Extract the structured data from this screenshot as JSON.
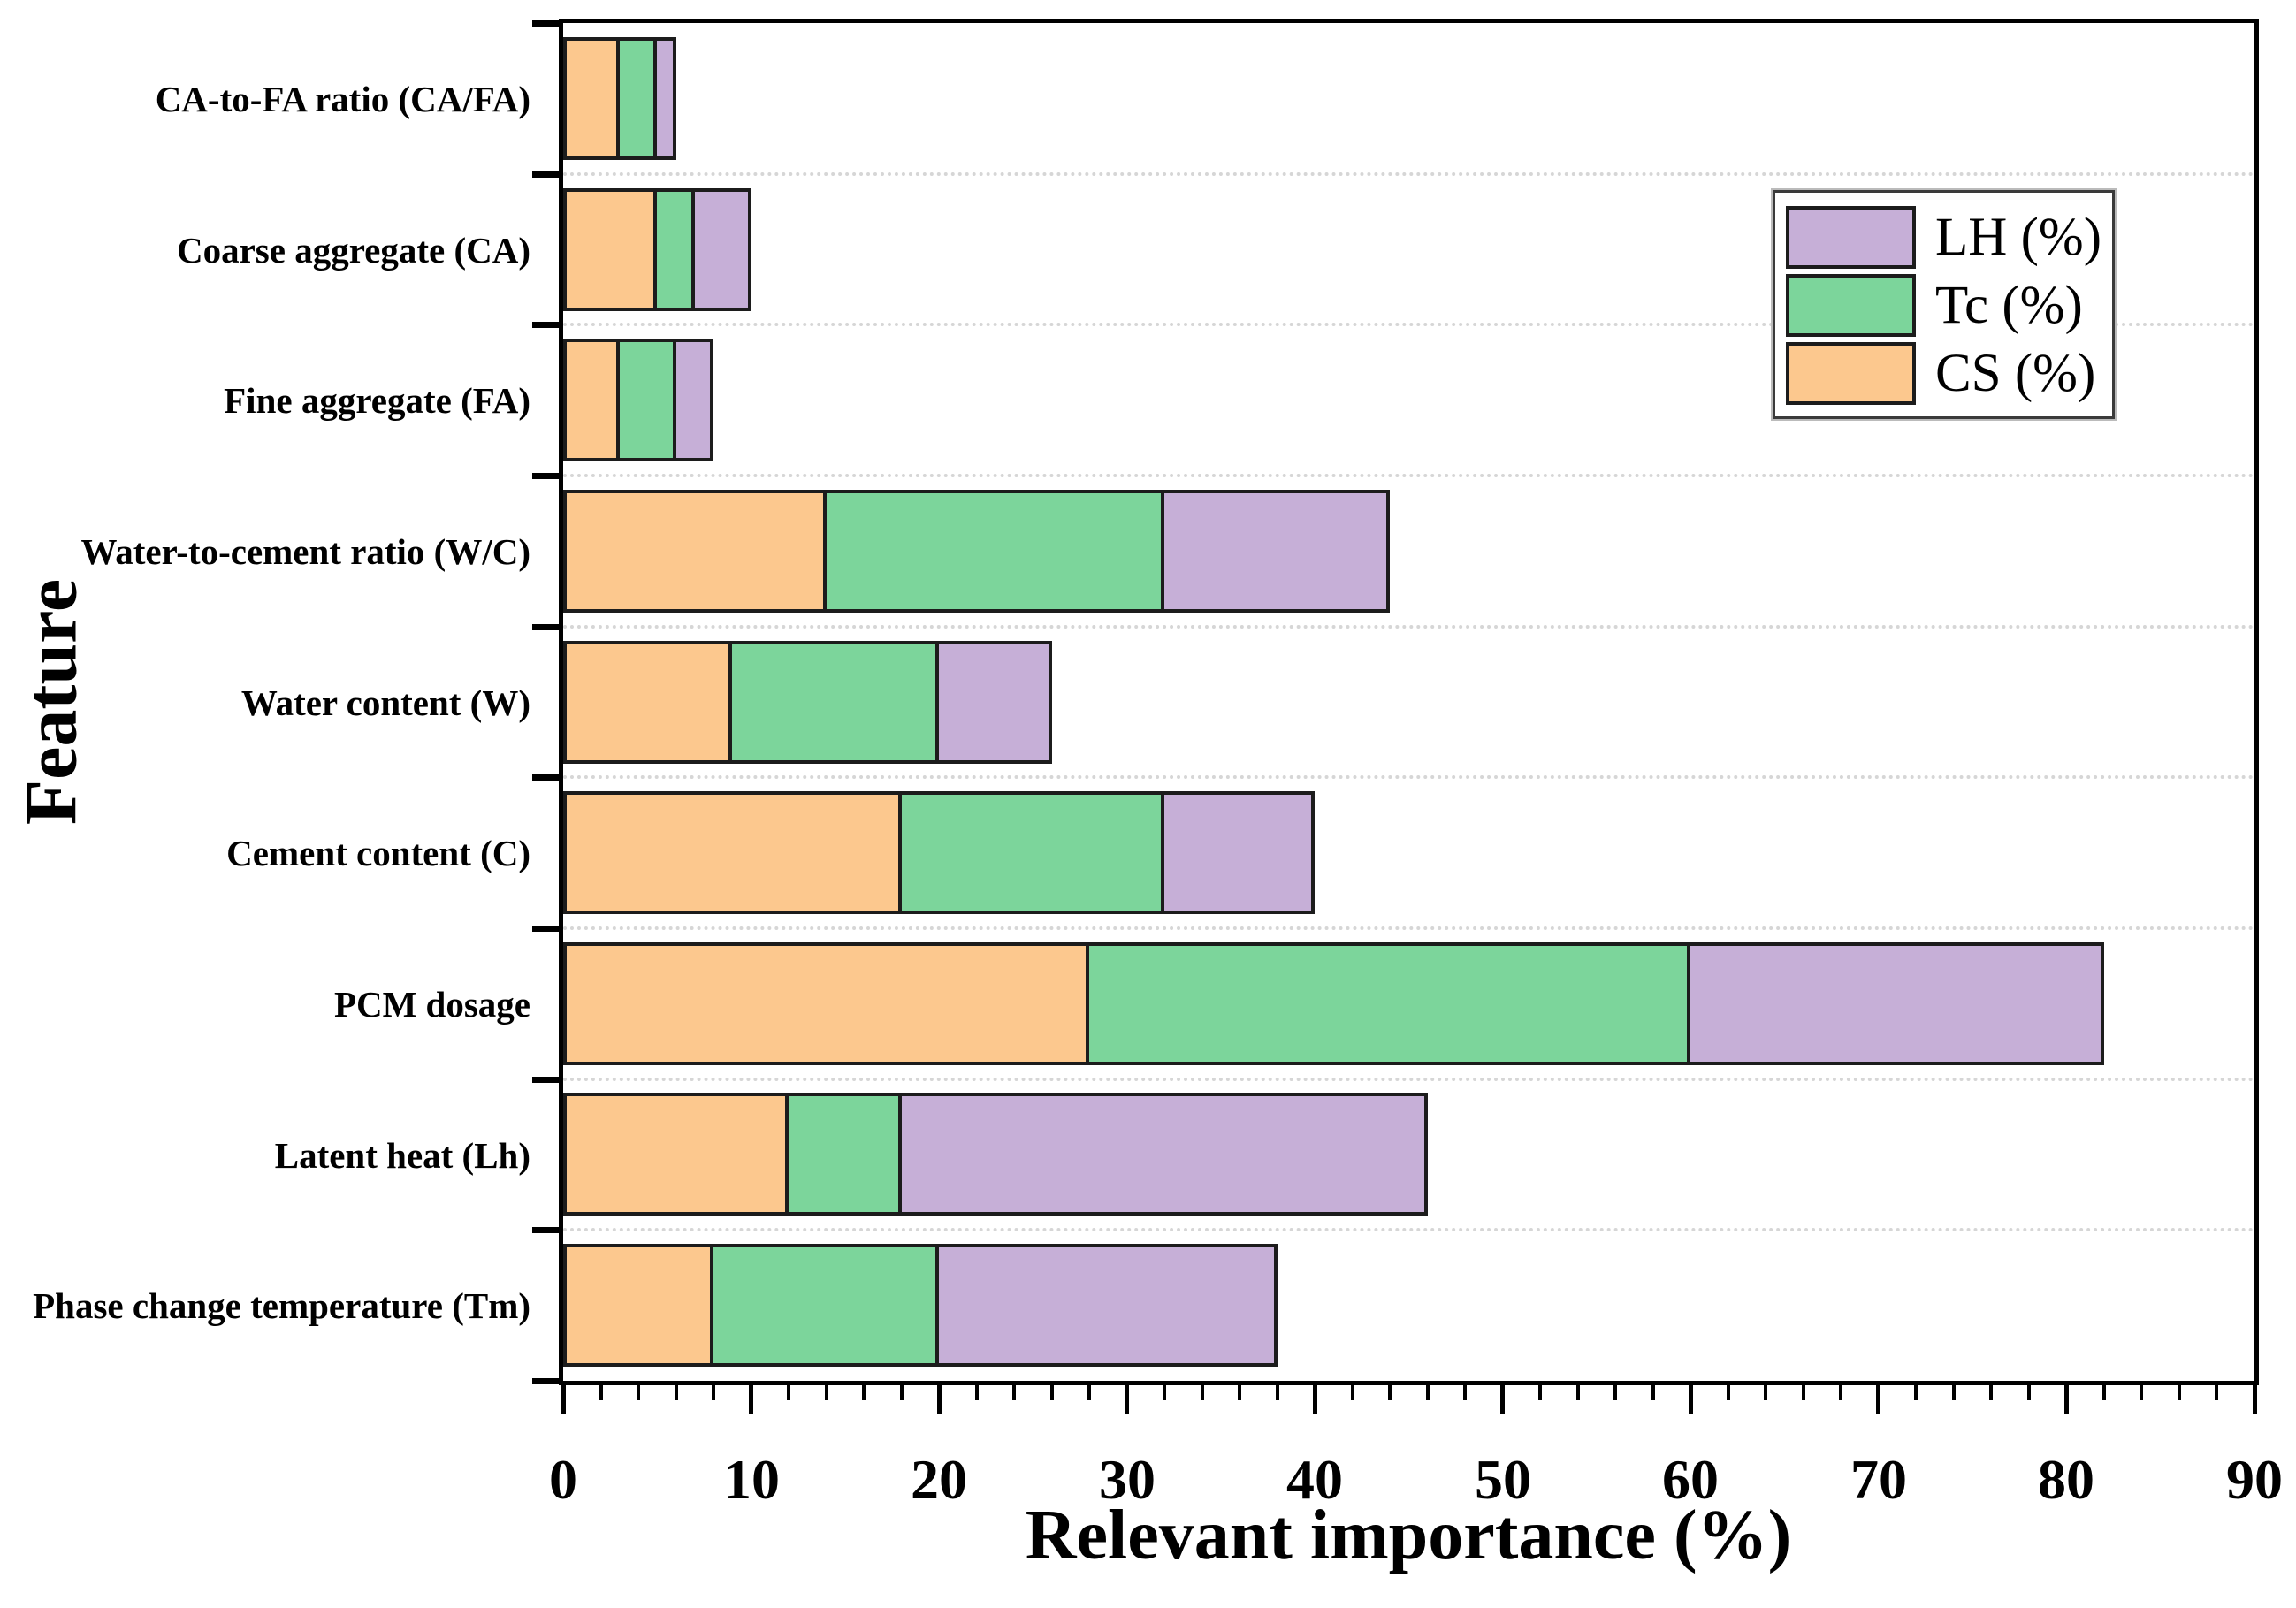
{
  "figure": {
    "y_axis_title": "Feature",
    "x_axis_title": "Relevant importance (%)"
  },
  "legend": {
    "position": "upper-right",
    "entries": [
      {
        "label": "LH (%)",
        "color": "#c6afd7"
      },
      {
        "label": "Tc (%)",
        "color": "#7cd59b"
      },
      {
        "label": "CS (%)",
        "color": "#fcc88e"
      }
    ]
  },
  "chart_data": {
    "type": "bar",
    "orientation": "horizontal",
    "stacked": true,
    "title": "",
    "xlabel": "Relevant importance (%)",
    "ylabel": "Feature",
    "xlim": [
      0,
      90
    ],
    "x_ticks": [
      0,
      10,
      20,
      30,
      40,
      50,
      60,
      70,
      80,
      90
    ],
    "x_minor_tick_step": 2,
    "grid": "horizontal dotted lines between category rows",
    "legend_position": "upper-right",
    "categories": [
      "CA-to-FA ratio (CA/FA)",
      "Coarse aggregate (CA)",
      "Fine aggregate (FA)",
      "Water-to-cement ratio (W/C)",
      "Water content (W)",
      "Cement content (C)",
      "PCM dosage",
      "Latent heat (Lh)",
      "Phase change temperature (Tm)"
    ],
    "series": [
      {
        "name": "CS (%)",
        "color": "#fcc88e",
        "values": [
          3,
          5,
          3,
          14,
          9,
          18,
          28,
          12,
          8
        ]
      },
      {
        "name": "Tc (%)",
        "color": "#7cd59b",
        "values": [
          2,
          2,
          3,
          18,
          11,
          14,
          32,
          6,
          12
        ]
      },
      {
        "name": "LH (%)",
        "color": "#c6afd7",
        "values": [
          1,
          3,
          2,
          12,
          6,
          8,
          22,
          28,
          18
        ]
      }
    ],
    "stack_totals": [
      6,
      10,
      8,
      44,
      26,
      40,
      82,
      46,
      38
    ]
  }
}
